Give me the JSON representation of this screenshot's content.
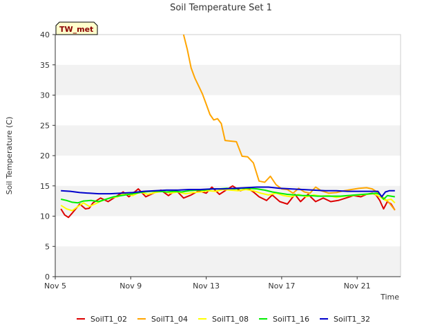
{
  "chart_data": {
    "type": "line",
    "title": "Soil Temperature Set 1",
    "xlabel": "Time",
    "ylabel": "Soil Temperature (C)",
    "badge": "TW_met",
    "ylim": [
      0,
      40
    ],
    "xlim": [
      5,
      23.3
    ],
    "y_ticks": [
      0,
      5,
      10,
      15,
      20,
      25,
      30,
      35,
      40
    ],
    "y_tick_labels": [
      "0",
      "5",
      "10",
      "15",
      "20",
      "25",
      "30",
      "35",
      "40"
    ],
    "x_ticks": [
      5,
      9,
      13,
      17,
      21
    ],
    "x_tick_labels": [
      "Nov 5",
      "Nov 9",
      "Nov 13",
      "Nov 17",
      "Nov 21"
    ],
    "bands": [
      [
        0,
        5
      ],
      [
        10,
        15
      ],
      [
        20,
        25
      ],
      [
        30,
        35
      ]
    ],
    "series": [
      {
        "name": "SoilT1_02",
        "color": "#dd0000",
        "x": [
          5.3,
          5.5,
          5.7,
          5.9,
          6.3,
          6.6,
          6.8,
          7.0,
          7.4,
          7.8,
          8.1,
          8.6,
          8.9,
          9.4,
          9.8,
          10.2,
          10.6,
          11.0,
          11.4,
          11.8,
          12.2,
          12.6,
          13.0,
          13.3,
          13.7,
          14.1,
          14.4,
          14.8,
          15.2,
          15.5,
          15.8,
          16.2,
          16.5,
          16.9,
          17.3,
          17.7,
          18.0,
          18.4,
          18.8,
          19.2,
          19.6,
          20.0,
          20.4,
          20.8,
          21.2,
          21.5,
          21.8,
          22.0,
          22.2,
          22.4,
          22.6,
          22.8,
          23.0
        ],
        "values": [
          11.2,
          10.2,
          9.8,
          10.5,
          12.0,
          11.2,
          11.3,
          12.2,
          13.0,
          12.4,
          13.0,
          14.0,
          13.2,
          14.5,
          13.2,
          13.8,
          14.3,
          13.4,
          14.3,
          13.0,
          13.5,
          14.2,
          13.8,
          14.8,
          13.6,
          14.4,
          15.0,
          14.2,
          14.6,
          14.0,
          13.2,
          12.6,
          13.5,
          12.4,
          12.0,
          13.6,
          12.4,
          13.6,
          12.4,
          13.0,
          12.4,
          12.6,
          13.0,
          13.4,
          13.2,
          13.6,
          13.8,
          13.5,
          12.6,
          11.2,
          12.4,
          12.0,
          11.0
        ]
      },
      {
        "name": "SoilT1_04",
        "color": "#ffa500",
        "x": [
          11.8,
          12.0,
          12.2,
          12.4,
          12.6,
          12.8,
          13.0,
          13.2,
          13.4,
          13.6,
          13.8,
          14.0,
          14.3,
          14.6,
          14.9,
          15.2,
          15.5,
          15.8,
          16.1,
          16.4,
          16.7,
          17.0,
          17.3,
          17.6,
          17.9,
          18.2,
          18.5,
          18.8,
          19.1,
          19.5,
          19.9,
          20.3,
          20.7,
          21.1,
          21.5,
          21.8,
          22.1,
          22.4,
          22.7,
          23.0
        ],
        "values": [
          40.0,
          37.5,
          34.5,
          32.8,
          31.5,
          30.2,
          28.5,
          26.8,
          25.9,
          26.1,
          25.3,
          22.5,
          22.4,
          22.3,
          19.9,
          19.8,
          18.8,
          15.8,
          15.6,
          16.6,
          15.2,
          14.5,
          14.4,
          13.8,
          14.6,
          14.0,
          13.8,
          14.8,
          14.2,
          13.8,
          13.9,
          14.2,
          14.4,
          14.6,
          14.7,
          14.5,
          13.9,
          13.0,
          12.2,
          11.0
        ]
      },
      {
        "name": "SoilT1_08",
        "color": "#ffff00",
        "x": [
          5.3,
          5.6,
          5.9,
          6.2,
          6.5,
          6.8,
          7.1,
          7.5,
          7.9,
          8.3,
          8.7,
          9.1,
          9.5,
          9.9,
          10.3,
          10.7,
          11.1,
          11.5,
          11.9,
          12.3,
          12.7,
          13.1,
          13.5,
          13.9,
          14.3,
          14.7,
          15.1,
          15.5,
          15.9,
          16.3,
          16.7,
          17.1,
          17.5,
          17.9,
          18.3,
          18.7,
          19.1,
          19.5,
          19.9,
          20.3,
          20.7,
          21.1,
          21.5,
          21.9,
          22.2,
          22.5,
          22.8,
          23.0
        ],
        "values": [
          11.8,
          11.2,
          10.9,
          11.6,
          12.2,
          11.6,
          12.0,
          12.6,
          13.0,
          13.2,
          13.8,
          13.4,
          14.0,
          13.6,
          13.9,
          14.1,
          13.8,
          14.0,
          13.7,
          13.9,
          14.0,
          14.2,
          14.1,
          14.4,
          14.3,
          14.2,
          14.4,
          14.2,
          13.8,
          13.5,
          13.8,
          13.4,
          13.2,
          13.6,
          13.2,
          13.5,
          13.3,
          13.4,
          13.1,
          13.3,
          13.4,
          13.5,
          13.6,
          13.7,
          13.2,
          12.6,
          12.8,
          12.2
        ]
      },
      {
        "name": "SoilT1_16",
        "color": "#00ee00",
        "x": [
          5.3,
          5.6,
          5.9,
          6.2,
          6.5,
          6.9,
          7.3,
          7.7,
          8.1,
          8.5,
          8.9,
          9.3,
          9.7,
          10.1,
          10.5,
          10.9,
          11.3,
          11.7,
          12.1,
          12.5,
          12.9,
          13.3,
          13.7,
          14.1,
          14.5,
          14.9,
          15.3,
          15.7,
          16.1,
          16.5,
          16.9,
          17.3,
          17.7,
          18.1,
          18.5,
          18.9,
          19.3,
          19.7,
          20.1,
          20.5,
          20.9,
          21.3,
          21.7,
          22.0,
          22.2,
          22.4,
          22.6,
          22.8,
          23.0
        ],
        "values": [
          12.8,
          12.6,
          12.3,
          12.2,
          12.5,
          12.6,
          12.4,
          12.8,
          13.2,
          13.4,
          13.6,
          13.8,
          14.0,
          14.1,
          14.1,
          14.0,
          14.1,
          14.0,
          14.2,
          14.3,
          14.3,
          14.5,
          14.5,
          14.6,
          14.5,
          14.6,
          14.6,
          14.5,
          14.3,
          14.0,
          13.8,
          13.6,
          13.5,
          13.4,
          13.4,
          13.3,
          13.3,
          13.3,
          13.3,
          13.4,
          13.5,
          13.6,
          13.7,
          13.8,
          13.6,
          12.8,
          13.4,
          13.3,
          13.2
        ]
      },
      {
        "name": "SoilT1_32",
        "color": "#0000cc",
        "x": [
          5.3,
          5.8,
          6.3,
          6.8,
          7.3,
          7.9,
          8.5,
          9.1,
          9.7,
          10.3,
          10.9,
          11.5,
          12.1,
          12.7,
          13.3,
          13.9,
          14.5,
          15.1,
          15.7,
          16.3,
          16.9,
          17.5,
          18.1,
          18.7,
          19.3,
          19.9,
          20.5,
          21.1,
          21.7,
          22.1,
          22.3,
          22.5,
          22.7,
          23.0
        ],
        "values": [
          14.2,
          14.1,
          13.9,
          13.8,
          13.7,
          13.7,
          13.8,
          13.9,
          14.1,
          14.2,
          14.3,
          14.3,
          14.4,
          14.4,
          14.5,
          14.5,
          14.6,
          14.7,
          14.8,
          14.8,
          14.6,
          14.5,
          14.4,
          14.3,
          14.2,
          14.2,
          14.1,
          14.1,
          14.1,
          14.1,
          13.2,
          14.0,
          14.2,
          14.2
        ]
      }
    ]
  }
}
